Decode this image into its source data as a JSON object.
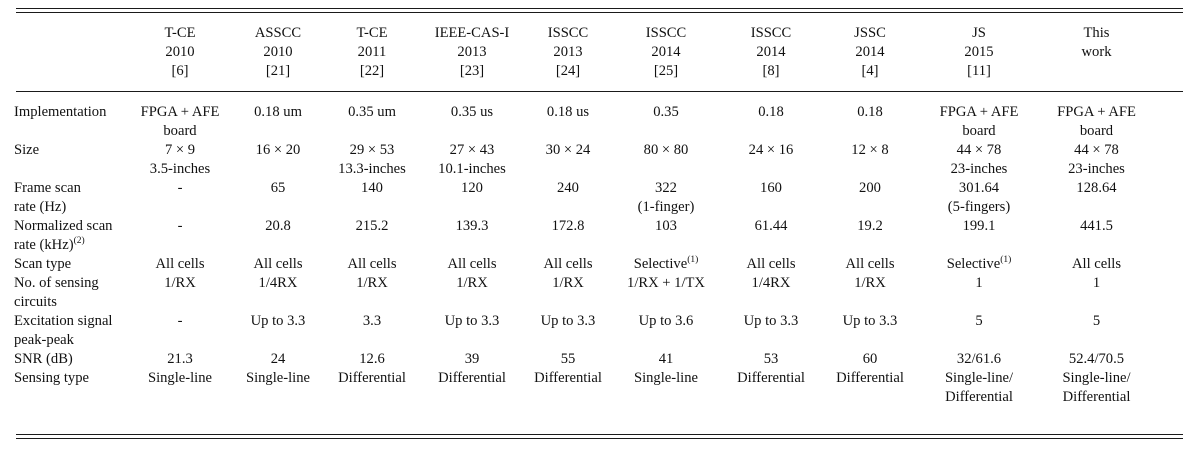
{
  "table": {
    "columns": [
      {
        "lines": [
          "",
          "",
          ""
        ]
      },
      {
        "lines": [
          "T-CE",
          "2010",
          "[6]"
        ]
      },
      {
        "lines": [
          "ASSCC",
          "2010",
          "[21]"
        ]
      },
      {
        "lines": [
          "T-CE",
          "2011",
          "[22]"
        ]
      },
      {
        "lines": [
          "IEEE-CAS-I",
          "2013",
          "[23]"
        ]
      },
      {
        "lines": [
          "ISSCC",
          "2013",
          "[24]"
        ]
      },
      {
        "lines": [
          "ISSCC",
          "2014",
          "[25]"
        ]
      },
      {
        "lines": [
          "ISSCC",
          "2014",
          "[8]"
        ]
      },
      {
        "lines": [
          "JSSC",
          "2014",
          "[4]"
        ]
      },
      {
        "lines": [
          "JS",
          "2015",
          "[11]"
        ]
      },
      {
        "lines": [
          "This",
          "work",
          ""
        ]
      }
    ],
    "rows": [
      {
        "label": [
          "Implementation"
        ],
        "cells": [
          [
            "FPGA + AFE",
            "board"
          ],
          [
            "0.18 um"
          ],
          [
            "0.35 um"
          ],
          [
            "0.35 us"
          ],
          [
            "0.18 us"
          ],
          [
            "0.35"
          ],
          [
            "0.18"
          ],
          [
            "0.18"
          ],
          [
            "FPGA + AFE",
            "board"
          ],
          [
            "FPGA + AFE",
            "board"
          ]
        ]
      },
      {
        "label": [
          "Size"
        ],
        "cells": [
          [
            "7 × 9",
            "3.5-inches"
          ],
          [
            "16 × 20"
          ],
          [
            "29 × 53",
            "13.3-inches"
          ],
          [
            "27 × 43",
            "10.1-inches"
          ],
          [
            "30 × 24"
          ],
          [
            "80 × 80"
          ],
          [
            "24 × 16"
          ],
          [
            "12 × 8"
          ],
          [
            "44 × 78",
            "23-inches"
          ],
          [
            "44 × 78",
            "23-inches"
          ]
        ]
      },
      {
        "label": [
          "Frame scan",
          "rate (Hz)"
        ],
        "cells": [
          [
            "-"
          ],
          [
            "65"
          ],
          [
            "140"
          ],
          [
            "120"
          ],
          [
            "240"
          ],
          [
            "322",
            "(1-finger)"
          ],
          [
            "160"
          ],
          [
            "200"
          ],
          [
            "301.64",
            "(5-fingers)"
          ],
          [
            "128.64"
          ]
        ]
      },
      {
        "label": [
          "Normalized scan",
          "rate (kHz)"
        ],
        "label_sup": "(2)",
        "cells": [
          [
            "-"
          ],
          [
            "20.8"
          ],
          [
            "215.2"
          ],
          [
            "139.3"
          ],
          [
            "172.8"
          ],
          [
            "103"
          ],
          [
            "61.44"
          ],
          [
            "19.2"
          ],
          [
            "199.1"
          ],
          [
            "441.5"
          ]
        ]
      },
      {
        "label": [
          "Scan type"
        ],
        "cells": [
          [
            "All cells"
          ],
          [
            "All cells"
          ],
          [
            "All cells"
          ],
          [
            "All cells"
          ],
          [
            "All cells"
          ],
          [
            "Selective"
          ],
          [
            "All cells"
          ],
          [
            "All cells"
          ],
          [
            "Selective"
          ],
          [
            "All cells"
          ]
        ],
        "cell_sups": [
          "",
          "",
          "",
          "",
          "",
          "(1)",
          "",
          "",
          "(1)",
          ""
        ]
      },
      {
        "label": [
          "No. of sensing",
          "circuits"
        ],
        "cells": [
          [
            "1/RX"
          ],
          [
            "1/4RX"
          ],
          [
            "1/RX"
          ],
          [
            "1/RX"
          ],
          [
            "1/RX"
          ],
          [
            "1/RX + 1/TX"
          ],
          [
            "1/4RX"
          ],
          [
            "1/RX"
          ],
          [
            "1"
          ],
          [
            "1"
          ]
        ]
      },
      {
        "label": [
          "Excitation signal",
          "peak-peak"
        ],
        "cells": [
          [
            "-"
          ],
          [
            "Up to 3.3"
          ],
          [
            "3.3"
          ],
          [
            "Up to 3.3"
          ],
          [
            "Up to 3.3"
          ],
          [
            "Up to 3.6"
          ],
          [
            "Up to 3.3"
          ],
          [
            "Up to 3.3"
          ],
          [
            "5"
          ],
          [
            "5"
          ]
        ]
      },
      {
        "label": [
          "SNR (dB)"
        ],
        "cells": [
          [
            "21.3"
          ],
          [
            "24"
          ],
          [
            "12.6"
          ],
          [
            "39"
          ],
          [
            "55"
          ],
          [
            "41"
          ],
          [
            "53"
          ],
          [
            "60"
          ],
          [
            "32/61.6"
          ],
          [
            "52.4/70.5"
          ]
        ]
      },
      {
        "label": [
          "Sensing type"
        ],
        "cells": [
          [
            "Single-line"
          ],
          [
            "Single-line"
          ],
          [
            "Differential"
          ],
          [
            "Differential"
          ],
          [
            "Differential"
          ],
          [
            "Single-line"
          ],
          [
            "Differential"
          ],
          [
            "Differential"
          ],
          [
            "Single-line/",
            "Differential"
          ],
          [
            "Single-line/",
            "Differential"
          ]
        ]
      }
    ]
  }
}
